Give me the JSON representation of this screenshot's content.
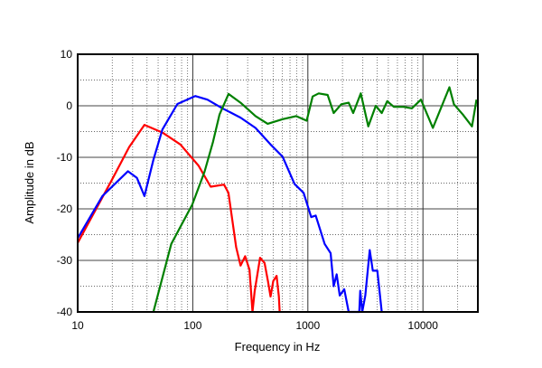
{
  "chart_data": {
    "type": "line",
    "title": "",
    "xlabel": "Frequency in Hz",
    "ylabel": "Amplitude in dB",
    "xscale": "log",
    "xlim": [
      10,
      30000
    ],
    "ylim": [
      -40,
      10
    ],
    "grid": true,
    "x_ticks": [
      "10",
      "100",
      "1000",
      "10000"
    ],
    "x_tick_values": [
      10,
      100,
      1000,
      10000
    ],
    "y_ticks": [
      "10",
      "0",
      "-10",
      "-20",
      "-30",
      "-40"
    ],
    "y_tick_values": [
      10,
      0,
      -10,
      -20,
      -30,
      -40
    ],
    "series": [
      {
        "name": "red",
        "color": "#ff0000",
        "points": [
          [
            10,
            -26.6
          ],
          [
            19.6,
            -14.6
          ],
          [
            28,
            -8
          ],
          [
            38,
            -3.7
          ],
          [
            54.5,
            -5.2
          ],
          [
            78,
            -7.5
          ],
          [
            112,
            -11.6
          ],
          [
            143,
            -15.7
          ],
          [
            187,
            -15.3
          ],
          [
            204,
            -16.9
          ],
          [
            238,
            -27.4
          ],
          [
            260,
            -31
          ],
          [
            285,
            -29.2
          ],
          [
            311,
            -31.8
          ],
          [
            330,
            -40
          ],
          [
            345,
            -36
          ],
          [
            384,
            -29.5
          ],
          [
            421,
            -30.5
          ],
          [
            450,
            -34
          ],
          [
            474,
            -37
          ],
          [
            500,
            -34
          ],
          [
            535,
            -33
          ],
          [
            560,
            -37
          ],
          [
            569,
            -40
          ]
        ]
      },
      {
        "name": "blue",
        "color": "#0000ff",
        "points": [
          [
            10,
            -25.7
          ],
          [
            16.4,
            -17.5
          ],
          [
            27.3,
            -12.7
          ],
          [
            32.7,
            -14
          ],
          [
            38,
            -17.5
          ],
          [
            45.5,
            -10.5
          ],
          [
            54.5,
            -4.6
          ],
          [
            73.6,
            0.35
          ],
          [
            105,
            1.9
          ],
          [
            134,
            1.2
          ],
          [
            181,
            -0.5
          ],
          [
            260,
            -2.3
          ],
          [
            351,
            -4.3
          ],
          [
            474,
            -7.5
          ],
          [
            604,
            -9.9
          ],
          [
            767,
            -15.2
          ],
          [
            918,
            -16.9
          ],
          [
            1069,
            -21.6
          ],
          [
            1170,
            -21.3
          ],
          [
            1400,
            -26.8
          ],
          [
            1578,
            -28.6
          ],
          [
            1678,
            -35
          ],
          [
            1780,
            -32.7
          ],
          [
            1893,
            -36.8
          ],
          [
            2070,
            -35.6
          ],
          [
            2265,
            -40
          ],
          [
            2795,
            -40
          ],
          [
            2850,
            -35.9
          ],
          [
            2970,
            -40
          ],
          [
            3155,
            -36.8
          ],
          [
            3450,
            -28
          ],
          [
            3665,
            -32
          ],
          [
            4010,
            -32
          ],
          [
            4385,
            -40
          ]
        ]
      },
      {
        "name": "green",
        "color": "#008000",
        "points": [
          [
            45.5,
            -40
          ],
          [
            65,
            -26.8
          ],
          [
            99,
            -19.2
          ],
          [
            126.5,
            -12.8
          ],
          [
            150,
            -7
          ],
          [
            170.6,
            -1.7
          ],
          [
            204.6,
            2.3
          ],
          [
            260,
            0.6
          ],
          [
            351,
            -2
          ],
          [
            447,
            -3.5
          ],
          [
            604,
            -2.6
          ],
          [
            791,
            -2
          ],
          [
            977,
            -2.9
          ],
          [
            1101,
            1.8
          ],
          [
            1241,
            2.4
          ],
          [
            1486,
            2.1
          ],
          [
            1678,
            -1.4
          ],
          [
            1950,
            0.3
          ],
          [
            2265,
            0.6
          ],
          [
            2478,
            -1.4
          ],
          [
            2884,
            2.4
          ],
          [
            3350,
            -4
          ],
          [
            3890,
            0
          ],
          [
            4385,
            -1.4
          ],
          [
            4897,
            0.9
          ],
          [
            5580,
            -0.2
          ],
          [
            6680,
            -0.2
          ],
          [
            8000,
            -0.5
          ],
          [
            9600,
            1.2
          ],
          [
            12190,
            -4.3
          ],
          [
            16980,
            3.6
          ],
          [
            18580,
            0.3
          ],
          [
            22230,
            -1.7
          ],
          [
            26680,
            -4
          ],
          [
            29180,
            1.2
          ]
        ]
      }
    ]
  }
}
